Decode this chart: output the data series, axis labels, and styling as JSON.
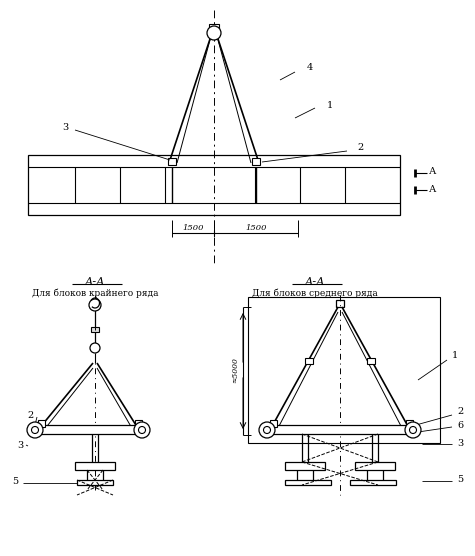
{
  "bg_color": "#ffffff",
  "line_color": "#000000",
  "section_AA": "А-А",
  "label_left": "Для блоков крайнего ряда",
  "label_right": "Для блоков среднего ряда",
  "dim_1500": "1500",
  "dim_5000": "≈5000"
}
